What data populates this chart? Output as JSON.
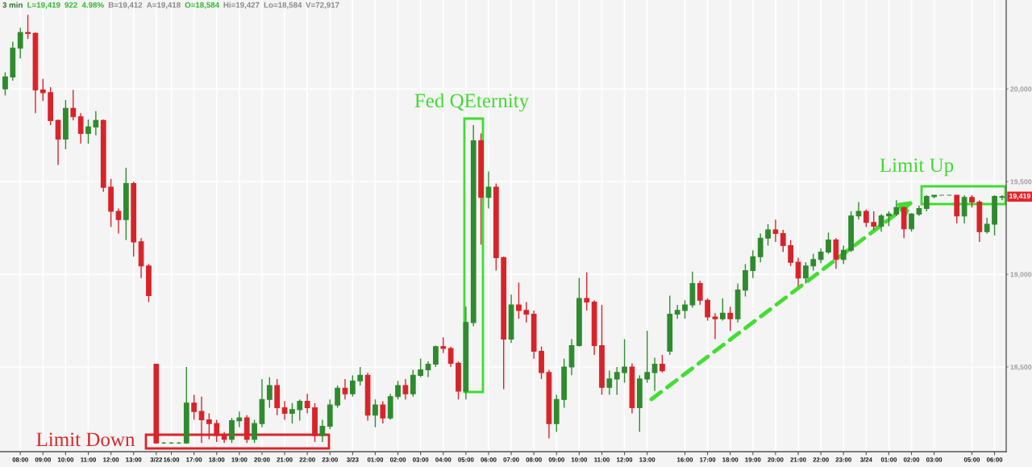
{
  "chart_data": {
    "type": "candlestick",
    "categories": [
      null,
      null,
      "08:00",
      null,
      null,
      "09:00",
      null,
      null,
      "10:00",
      null,
      null,
      "11:00",
      null,
      null,
      "12:00",
      null,
      null,
      "13:00",
      null,
      null,
      "3/22",
      null,
      "16:00",
      null,
      null,
      "17:00",
      null,
      null,
      "18:00",
      null,
      null,
      "19:00",
      null,
      null,
      "20:00",
      null,
      null,
      "21:00",
      null,
      null,
      "22:00",
      null,
      null,
      "23:00",
      null,
      null,
      "3/23",
      null,
      null,
      "01:00",
      null,
      null,
      "02:00",
      null,
      null,
      "03:00",
      null,
      null,
      "04:00",
      null,
      null,
      "05:00",
      null,
      null,
      "06:00",
      null,
      null,
      "07:00",
      null,
      null,
      "08:00",
      null,
      null,
      "09:00",
      null,
      null,
      "10:00",
      null,
      null,
      "11:00",
      null,
      null,
      "12:00",
      null,
      null,
      "13:00",
      null,
      null,
      null,
      null,
      "16:00",
      null,
      null,
      "17:00",
      null,
      null,
      "18:00",
      null,
      null,
      "19:00",
      null,
      null,
      "20:00",
      null,
      null,
      "21:00",
      null,
      null,
      "22:00",
      null,
      null,
      "23:00",
      null,
      null,
      "3/24",
      null,
      null,
      "01:00",
      null,
      null,
      "02:00",
      null,
      null,
      "03:00",
      null,
      null,
      null,
      null,
      "05:00",
      null,
      null,
      "06:00",
      null
    ],
    "ohlc": [
      [
        20000,
        20090,
        19965,
        20065
      ],
      [
        20065,
        20255,
        20045,
        20220
      ],
      [
        20220,
        20330,
        20165,
        20305
      ],
      [
        20305,
        20400,
        20270,
        20300
      ],
      [
        20300,
        20305,
        19870,
        19995
      ],
      [
        19995,
        20055,
        19935,
        19980
      ],
      [
        19980,
        20010,
        19805,
        19830
      ],
      [
        19830,
        19835,
        19590,
        19730
      ],
      [
        19730,
        19940,
        19675,
        19895
      ],
      [
        19895,
        19995,
        19830,
        19850
      ],
      [
        19850,
        19870,
        19705,
        19760
      ],
      [
        19760,
        19835,
        19705,
        19795
      ],
      [
        19795,
        19880,
        19750,
        19830
      ],
      [
        19830,
        19835,
        19445,
        19470
      ],
      [
        19470,
        19515,
        19255,
        19340
      ],
      [
        19340,
        19355,
        19220,
        19295
      ],
      [
        19295,
        19575,
        19185,
        19490
      ],
      [
        19490,
        19500,
        19095,
        19175
      ],
      [
        19175,
        19195,
        18980,
        19045
      ],
      [
        19045,
        19055,
        18850,
        18885
      ],
      [
        18515,
        18515,
        18085,
        18090
      ],
      [
        18090,
        18095,
        18085,
        18090
      ],
      [
        18090,
        18095,
        18085,
        18090
      ],
      [
        18090,
        18095,
        18085,
        18090
      ],
      [
        18090,
        18500,
        18085,
        18305
      ],
      [
        18305,
        18350,
        18215,
        18260
      ],
      [
        18260,
        18340,
        18090,
        18215
      ],
      [
        18215,
        18250,
        18110,
        18195
      ],
      [
        18195,
        18215,
        18095,
        18130
      ],
      [
        18130,
        18150,
        18090,
        18110
      ],
      [
        18110,
        18225,
        18090,
        18210
      ],
      [
        18210,
        18260,
        18175,
        18225
      ],
      [
        18225,
        18240,
        18090,
        18110
      ],
      [
        18110,
        18215,
        18090,
        18195
      ],
      [
        18195,
        18435,
        18175,
        18325
      ],
      [
        18325,
        18445,
        18280,
        18400
      ],
      [
        18400,
        18435,
        18240,
        18280
      ],
      [
        18280,
        18315,
        18215,
        18250
      ],
      [
        18250,
        18305,
        18195,
        18270
      ],
      [
        18270,
        18325,
        18210,
        18315
      ],
      [
        18315,
        18355,
        18250,
        18280
      ],
      [
        18280,
        18305,
        18095,
        18130
      ],
      [
        18130,
        18215,
        18095,
        18180
      ],
      [
        18180,
        18325,
        18165,
        18295
      ],
      [
        18295,
        18400,
        18280,
        18385
      ],
      [
        18385,
        18435,
        18325,
        18355
      ],
      [
        18355,
        18455,
        18340,
        18425
      ],
      [
        18425,
        18500,
        18400,
        18455
      ],
      [
        18455,
        18470,
        18210,
        18240
      ],
      [
        18240,
        18325,
        18175,
        18295
      ],
      [
        18295,
        18315,
        18195,
        18225
      ],
      [
        18225,
        18355,
        18215,
        18340
      ],
      [
        18340,
        18425,
        18325,
        18400
      ],
      [
        18400,
        18435,
        18325,
        18355
      ],
      [
        18355,
        18485,
        18340,
        18455
      ],
      [
        18455,
        18545,
        18445,
        18485
      ],
      [
        18485,
        18530,
        18445,
        18515
      ],
      [
        18515,
        18615,
        18500,
        18610
      ],
      [
        18610,
        18660,
        18575,
        18600
      ],
      [
        18600,
        18610,
        18500,
        18520
      ],
      [
        18520,
        18530,
        18325,
        18370
      ],
      [
        18370,
        18825,
        18325,
        18740
      ],
      [
        18740,
        19805,
        18720,
        19720
      ],
      [
        19720,
        19760,
        19160,
        19415
      ],
      [
        19415,
        19555,
        19355,
        19470
      ],
      [
        19470,
        19490,
        19020,
        19090
      ],
      [
        19090,
        19095,
        18380,
        18650
      ],
      [
        18650,
        18890,
        18630,
        18835
      ],
      [
        18835,
        18955,
        18760,
        18805
      ],
      [
        18805,
        18850,
        18740,
        18785
      ],
      [
        18785,
        18805,
        18545,
        18585
      ],
      [
        18585,
        18610,
        18435,
        18470
      ],
      [
        18470,
        18485,
        18115,
        18195
      ],
      [
        18195,
        18350,
        18150,
        18325
      ],
      [
        18325,
        18545,
        18280,
        18500
      ],
      [
        18500,
        18650,
        18455,
        18615
      ],
      [
        18615,
        18980,
        18610,
        18870
      ],
      [
        18870,
        19010,
        18805,
        18850
      ],
      [
        18850,
        18860,
        18565,
        18615
      ],
      [
        18615,
        18835,
        18350,
        18390
      ],
      [
        18390,
        18480,
        18350,
        18435
      ],
      [
        18435,
        18500,
        18350,
        18470
      ],
      [
        18470,
        18650,
        18415,
        18500
      ],
      [
        18500,
        18520,
        18250,
        18280
      ],
      [
        18280,
        18455,
        18150,
        18435
      ],
      [
        18435,
        18695,
        18415,
        18470
      ],
      [
        18470,
        18550,
        18370,
        18515
      ],
      [
        18515,
        18565,
        18470,
        18480
      ],
      [
        18585,
        18885,
        18565,
        18785
      ],
      [
        18785,
        18835,
        18760,
        18805
      ],
      [
        18805,
        18860,
        18760,
        18835
      ],
      [
        18835,
        19015,
        18820,
        18950
      ],
      [
        18950,
        18965,
        18835,
        18860
      ],
      [
        18860,
        18870,
        18750,
        18770
      ],
      [
        18770,
        18790,
        18650,
        18760
      ],
      [
        18760,
        18870,
        18750,
        18790
      ],
      [
        18790,
        18825,
        18695,
        18760
      ],
      [
        18760,
        18950,
        18740,
        18915
      ],
      [
        18915,
        19055,
        18880,
        19020
      ],
      [
        19020,
        19130,
        18980,
        19095
      ],
      [
        19095,
        19220,
        19065,
        19195
      ],
      [
        19195,
        19270,
        19155,
        19240
      ],
      [
        19240,
        19295,
        19175,
        19220
      ],
      [
        19220,
        19240,
        19120,
        19155
      ],
      [
        19155,
        19185,
        19045,
        19065
      ],
      [
        19065,
        19090,
        18935,
        18980
      ],
      [
        18980,
        19065,
        18950,
        19045
      ],
      [
        19045,
        19110,
        19020,
        19080
      ],
      [
        19080,
        19140,
        19060,
        19120
      ],
      [
        19120,
        19225,
        19110,
        19185
      ],
      [
        19185,
        19195,
        19030,
        19080
      ],
      [
        19080,
        19155,
        19055,
        19130
      ],
      [
        19130,
        19340,
        19120,
        19315
      ],
      [
        19315,
        19390,
        19295,
        19340
      ],
      [
        19340,
        19350,
        19255,
        19280
      ],
      [
        19280,
        19340,
        19240,
        19260
      ],
      [
        19260,
        19325,
        19230,
        19315
      ],
      [
        19315,
        19340,
        19260,
        19325
      ],
      [
        19325,
        19400,
        19315,
        19360
      ],
      [
        19360,
        19365,
        19195,
        19245
      ],
      [
        19245,
        19330,
        19230,
        19325
      ],
      [
        19325,
        19370,
        19315,
        19355
      ],
      [
        19355,
        19427,
        19340,
        19420
      ],
      [
        19420,
        19427,
        19410,
        19427
      ],
      [
        19427,
        19427,
        19427,
        19427
      ],
      [
        19427,
        19427,
        19427,
        19427
      ],
      [
        19427,
        19427,
        19275,
        19315
      ],
      [
        19315,
        19427,
        19275,
        19415
      ],
      [
        19415,
        19427,
        19360,
        19390
      ],
      [
        19390,
        19400,
        19175,
        19230
      ],
      [
        19230,
        19305,
        19220,
        19270
      ],
      [
        19270,
        19427,
        19210,
        19420
      ],
      [
        19415,
        19427,
        19400,
        19419
      ]
    ],
    "colors": [
      "#2e8b2e",
      "#2e8b2e",
      "#2e8b2e",
      "#d8232a",
      "#d8232a",
      "#d8232a",
      "#d8232a",
      "#d8232a",
      "#2e8b2e",
      "#d8232a",
      "#d8232a",
      "#2e8b2e",
      "#2e8b2e",
      "#d8232a",
      "#d8232a",
      "#d8232a",
      "#2e8b2e",
      "#d8232a",
      "#d8232a",
      "#d8232a",
      "#d8232a",
      "#2e8b2e",
      "#2e8b2e",
      "#2e8b2e",
      "#2e8b2e",
      "#d8232a",
      "#d8232a",
      "#d8232a",
      "#d8232a",
      "#d8232a",
      "#2e8b2e",
      "#2e8b2e",
      "#d8232a",
      "#2e8b2e",
      "#2e8b2e",
      "#2e8b2e",
      "#d8232a",
      "#d8232a",
      "#2e8b2e",
      "#2e8b2e",
      "#d8232a",
      "#d8232a",
      "#2e8b2e",
      "#2e8b2e",
      "#2e8b2e",
      "#d8232a",
      "#2e8b2e",
      "#2e8b2e",
      "#d8232a",
      "#2e8b2e",
      "#d8232a",
      "#2e8b2e",
      "#2e8b2e",
      "#d8232a",
      "#2e8b2e",
      "#2e8b2e",
      "#2e8b2e",
      "#2e8b2e",
      "#d8232a",
      "#d8232a",
      "#d8232a",
      "#2e8b2e",
      "#2e8b2e",
      "#d8232a",
      "#2e8b2e",
      "#d8232a",
      "#d8232a",
      "#2e8b2e",
      "#d8232a",
      "#d8232a",
      "#d8232a",
      "#d8232a",
      "#d8232a",
      "#2e8b2e",
      "#2e8b2e",
      "#2e8b2e",
      "#2e8b2e",
      "#d8232a",
      "#d8232a",
      "#d8232a",
      "#2e8b2e",
      "#2e8b2e",
      "#2e8b2e",
      "#d8232a",
      "#2e8b2e",
      "#2e8b2e",
      "#2e8b2e",
      "#d8232a",
      "#2e8b2e",
      "#2e8b2e",
      "#2e8b2e",
      "#2e8b2e",
      "#d8232a",
      "#d8232a",
      "#d8232a",
      "#2e8b2e",
      "#d8232a",
      "#2e8b2e",
      "#2e8b2e",
      "#2e8b2e",
      "#2e8b2e",
      "#2e8b2e",
      "#d8232a",
      "#d8232a",
      "#d8232a",
      "#d8232a",
      "#2e8b2e",
      "#2e8b2e",
      "#2e8b2e",
      "#2e8b2e",
      "#d8232a",
      "#2e8b2e",
      "#2e8b2e",
      "#2e8b2e",
      "#d8232a",
      "#d8232a",
      "#2e8b2e",
      "#2e8b2e",
      "#2e8b2e",
      "#d8232a",
      "#2e8b2e",
      "#2e8b2e",
      "#2e8b2e",
      "#2e8b2e",
      "#2e8b2e",
      "#2e8b2e",
      "#d8232a",
      "#2e8b2e",
      "#d8232a",
      "#d8232a",
      "#2e8b2e",
      "#2e8b2e",
      "#2e8b2e"
    ],
    "ylim": [
      18043,
      20480
    ],
    "yticks": [
      {
        "value": 18500,
        "label": "18,500"
      },
      {
        "value": 19000,
        "label": "19,000"
      },
      {
        "value": 19500,
        "label": "19,500"
      },
      {
        "value": 20000,
        "label": "20,000"
      }
    ],
    "grid": true,
    "annotations": [
      "3 min",
      "L=19,419",
      "922",
      "4.98%",
      "B=19,412",
      "A=19,418",
      "O=18,584",
      "Hi=19,427",
      "Lo=18,584",
      "V=72,917",
      "Fed QEternity",
      "Limit Up",
      "Limit Down",
      {
        "text": "19,419",
        "y": 19419
      }
    ]
  }
}
